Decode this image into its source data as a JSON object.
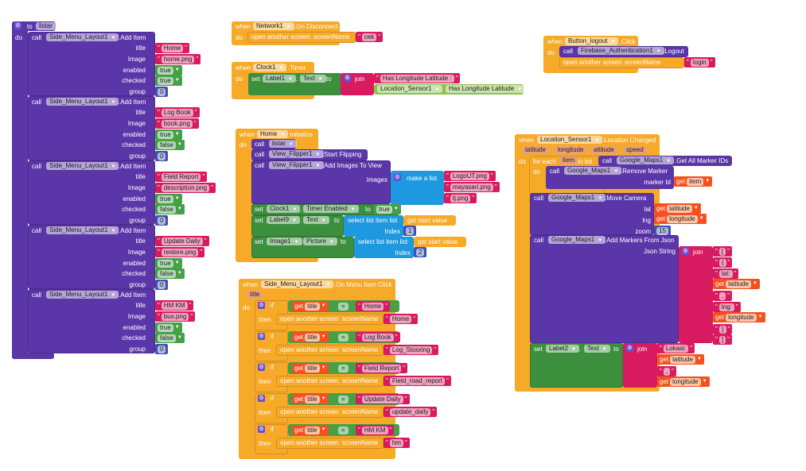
{
  "keywords": {
    "when": "when",
    "do": "do",
    "call": "call",
    "set": "set",
    "to": "to",
    "dot": ".",
    "open_screen": "open another screen",
    "screen_name": "screenName",
    "join": "join",
    "get": "get",
    "if": "if",
    "then": "then",
    "eq": "=",
    "make_list": "make a list",
    "select_item": "select list item  list",
    "index": "Index",
    "for_each": "for each",
    "in_list": "in list",
    "get_start_value": "get start value",
    "quote": "\""
  },
  "colors": {
    "event": "#f7a928",
    "procedure": "#5b36a8",
    "setter": "#3b8f3d",
    "text": "#d81b60",
    "list": "#1e98de",
    "number": "#3f51b5",
    "variable": "#f4511e",
    "logic": "#45a046",
    "component_getter": "#8bc34a"
  },
  "procedure": {
    "keyword_to": "to",
    "name": "listar",
    "param_labels": {
      "title": "title",
      "image": "Image",
      "enabled": "enabled",
      "checked": "checked",
      "group": "group"
    },
    "calls": [
      {
        "component": "Side_Menu_Layout1",
        "method": ".Add Item",
        "title": "Home",
        "image": "home.png",
        "enabled": "true",
        "checked": "true",
        "group": "0"
      },
      {
        "component": "Side_Menu_Layout1",
        "method": ".Add Item",
        "title": "Log Book",
        "image": "book.png",
        "enabled": "true",
        "checked": "false",
        "group": "0"
      },
      {
        "component": "Side_Menu_Layout1",
        "method": ".Add Item",
        "title": "Field Report",
        "image": "description.png",
        "enabled": "true",
        "checked": "false",
        "group": "0"
      },
      {
        "component": "Side_Menu_Layout1",
        "method": ".Add Item",
        "title": "Update Daily",
        "image": "restore.png",
        "enabled": "true",
        "checked": "false",
        "group": "0"
      },
      {
        "component": "Side_Menu_Layout1",
        "method": ".Add Item",
        "title": "HM KM",
        "image": "bus.png",
        "enabled": "true",
        "checked": "false",
        "group": "0"
      }
    ]
  },
  "network": {
    "component": "Network1",
    "event": ".On Disconnect",
    "screen": "cek"
  },
  "clock": {
    "component": "Clock1",
    "event": ".Timer",
    "set_component": "Label1",
    "set_property": "Text",
    "join_text": "Has Longitude Latitude :",
    "getter_component": "Location_Sensor1",
    "getter_property": "Has Longitude Latitude"
  },
  "home_init": {
    "component": "Home",
    "event": ".Initialize",
    "call_listar": "listar",
    "flipper": "View_Flipper1",
    "start_flipping": ".Start Flipping",
    "add_images": ".Add Images To View",
    "images_label": "Images",
    "images": [
      "LogoUT.png",
      "mayasari.png",
      "tj.png"
    ],
    "timer_component": "Clock1",
    "timer_property": "Timer Enabled",
    "timer_value": "true",
    "label_component": "Label9",
    "label_property": "Text",
    "label_index": "1",
    "image_component": "Image1",
    "image_property": "Picture",
    "image_index": "2"
  },
  "menu_click": {
    "component": "Side_Menu_Layout1",
    "event": ".On Menu Item Click",
    "param": "title",
    "cases": [
      {
        "var": "title",
        "match": "Home",
        "screen": "Home"
      },
      {
        "var": "title",
        "match": "Log Book",
        "screen": "Log_Stooring"
      },
      {
        "var": "title",
        "match": "Field Report",
        "screen": "Field_road_report"
      },
      {
        "var": "title",
        "match": "Update Daily",
        "screen": "update_daily"
      },
      {
        "var": "title",
        "match": "HM KM",
        "screen": "hm"
      }
    ]
  },
  "location": {
    "component": "Location_Sensor1",
    "event": ".Location Changed",
    "params": [
      "latitude",
      "longitude",
      "altitude",
      "speed"
    ],
    "loop_var": "item",
    "maps": "Google_Maps1",
    "get_ids": ".Get All Marker IDs",
    "remove_marker": ".Remove Marker",
    "marker_id_label": "marker Id",
    "move_camera": ".Move Camera",
    "lat_label": "lat",
    "lng_label": "lng",
    "zoom_label": "zoom",
    "zoom": "15",
    "var_latitude": "latitude",
    "var_longitude": "longitude",
    "add_markers": ".Add Markers From Json",
    "json_label": "Json String",
    "json_parts": [
      "[",
      "{",
      "lat:",
      ",",
      "lng:",
      "}",
      "]"
    ],
    "label_component": "Label2",
    "label_property": "Text",
    "label_prefix": "Lokasi:",
    "label_sep": ","
  },
  "logout": {
    "component": "Button_logout",
    "event": ".Click",
    "auth": "Firebase_Authentication1",
    "method": ".Logout",
    "screen": "login"
  }
}
